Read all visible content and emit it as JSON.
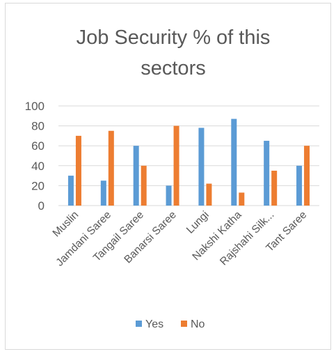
{
  "chart_data": {
    "type": "bar",
    "title_lines": [
      "Job Security % of this",
      "sectors"
    ],
    "categories": [
      "Muslin",
      "Jamdani Saree",
      "Tangail Saree",
      "Banarsi Saree",
      "Lungi",
      "Nakshi Katha",
      "Rajshahi Silk...",
      "Tant Saree"
    ],
    "series": [
      {
        "name": "Yes",
        "values": [
          30,
          25,
          60,
          20,
          78,
          87,
          65,
          40
        ],
        "color": "#5b9bd5"
      },
      {
        "name": "No",
        "values": [
          70,
          75,
          40,
          80,
          22,
          13,
          35,
          60
        ],
        "color": "#ed7d31"
      }
    ],
    "y_ticks": [
      "0",
      "20",
      "40",
      "60",
      "80",
      "100"
    ],
    "ylim": [
      0,
      100
    ],
    "grid": true,
    "legend_position": "bottom"
  }
}
